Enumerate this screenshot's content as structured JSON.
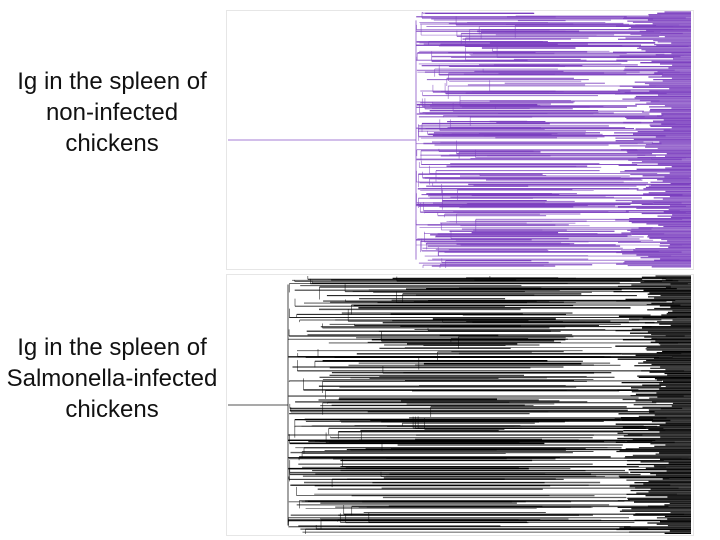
{
  "figure": {
    "top_panel": {
      "label": "Ig in the spleen of non-infected chickens",
      "tree_color": "#7b3fbf"
    },
    "bottom_panel": {
      "label": "Ig in the spleen of Salmonella-infected chickens",
      "tree_color": "#000000"
    }
  }
}
